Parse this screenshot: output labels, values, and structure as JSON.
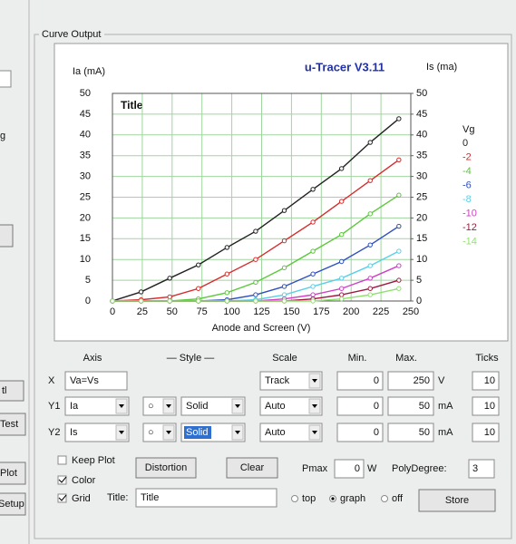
{
  "group_title": "Curve Output",
  "sidebar": {
    "hint": "g",
    "button_1": "tl",
    "button_2": "Test",
    "button_3": "Plot",
    "button_4": "Setup"
  },
  "chart_data": {
    "type": "line",
    "title": "u-Tracer V3.11",
    "annotation": "Title",
    "ylabel": "Ia (mA)",
    "y2label": "Is (ma)",
    "xlabel": "Anode and Screen (V)",
    "legend_title": "Vg",
    "x": [
      0,
      24,
      48,
      72,
      96,
      120,
      144,
      168,
      192,
      216,
      240
    ],
    "series": [
      {
        "name": "0",
        "color": "#222222",
        "values": [
          0,
          2.2,
          5.5,
          8.7,
          12.9,
          16.8,
          21.8,
          26.9,
          31.9,
          38.2,
          43.9
        ]
      },
      {
        "name": "-2",
        "color": "#d62b2b",
        "values": [
          0,
          0.3,
          1,
          3,
          6.5,
          10,
          14.5,
          19,
          24,
          29,
          34
        ]
      },
      {
        "name": "-4",
        "color": "#5cc83c",
        "values": [
          0,
          0,
          0,
          0.5,
          2,
          4.5,
          8,
          12,
          16,
          21,
          25.5
        ]
      },
      {
        "name": "-6",
        "color": "#2e4fc0",
        "values": [
          0,
          0,
          0,
          0,
          0.3,
          1.5,
          3.5,
          6.5,
          9.5,
          13.5,
          18
        ]
      },
      {
        "name": "-8",
        "color": "#5ad0e8",
        "values": [
          0,
          0,
          0,
          0,
          0,
          0.3,
          1.5,
          3.5,
          5.5,
          8.5,
          12
        ]
      },
      {
        "name": "-10",
        "color": "#d040c8",
        "values": [
          0,
          0,
          0,
          0,
          0,
          0,
          0.5,
          1.5,
          3,
          5.5,
          8.5
        ]
      },
      {
        "name": "-12",
        "color": "#a01840",
        "values": [
          0,
          0,
          0,
          0,
          0,
          0,
          0,
          0.5,
          1.5,
          3,
          5
        ]
      },
      {
        "name": "-14",
        "color": "#90e070",
        "values": [
          0,
          0,
          0,
          0,
          0,
          0,
          0,
          0,
          0.5,
          1.5,
          3
        ]
      }
    ],
    "xlim": [
      0,
      250
    ],
    "xticks": [
      0,
      25,
      50,
      75,
      100,
      125,
      150,
      175,
      200,
      225,
      250
    ],
    "ylim": [
      0,
      50
    ],
    "yticks": [
      0,
      5,
      10,
      15,
      20,
      25,
      30,
      35,
      40,
      45,
      50
    ],
    "y2lim": [
      0,
      50
    ],
    "y2ticks": [
      0,
      5,
      10,
      15,
      20,
      25,
      30,
      35,
      40,
      45,
      50
    ],
    "grid": true
  },
  "controls": {
    "headers": [
      "Axis",
      "— Style —",
      "Scale",
      "Min.",
      "Max.",
      "Ticks"
    ],
    "rows": [
      {
        "label": "X",
        "source": "Va=Vs",
        "scale": "Track",
        "min": 0,
        "max": 250,
        "unit": "V",
        "ticks": 10
      },
      {
        "label": "Y1",
        "source": "Ia",
        "marker": "○",
        "style": "Solid",
        "scale": "Auto",
        "min": 0,
        "max": 50,
        "unit": "mA",
        "ticks": 10
      },
      {
        "label": "Y2",
        "source": "Is",
        "marker": "○",
        "style": "Solid",
        "scale": "Auto",
        "min": 0,
        "max": 50,
        "unit": "mA",
        "ticks": 10
      }
    ],
    "keep_plot": "Keep Plot",
    "color": "Color",
    "grid": "Grid",
    "distortion": "Distortion",
    "clear": "Clear",
    "pmax_label": "Pmax",
    "pmax": 0,
    "pmax_unit": "W",
    "poly_label": "PolyDegree:",
    "poly": 3,
    "title_label": "Title:",
    "title_value": "Title",
    "radio_top": "top",
    "radio_graph": "graph",
    "radio_off": "off",
    "store": "Store"
  }
}
